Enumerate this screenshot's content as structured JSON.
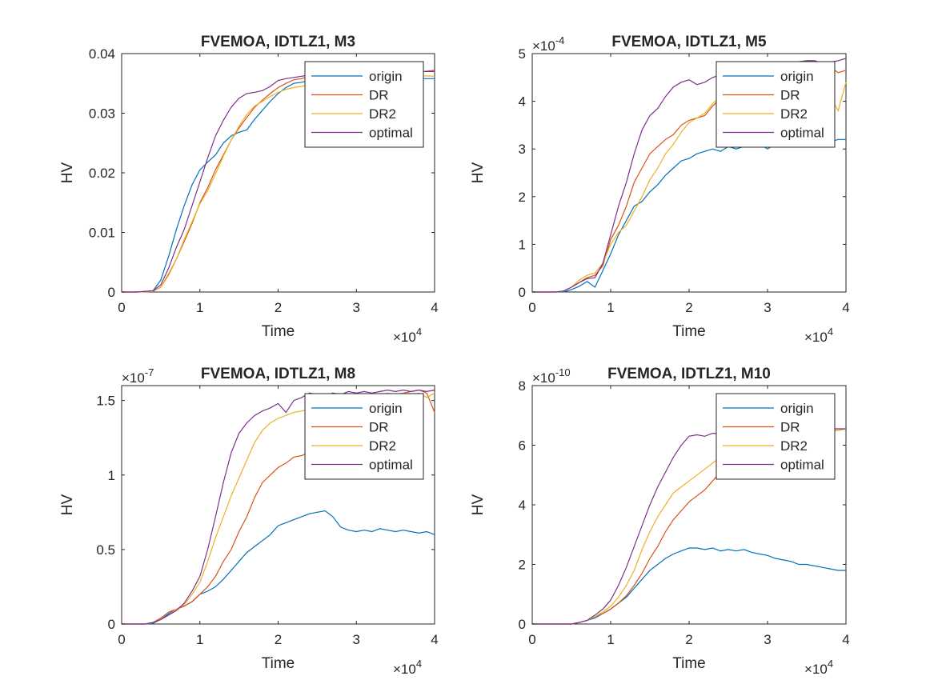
{
  "series_colors": {
    "origin": "#0072BD",
    "DR": "#D95319",
    "DR2": "#EDB120",
    "optimal": "#7E2F8E"
  },
  "chart_data": [
    {
      "type": "line",
      "title": "FVEMOA, IDTLZ1, M3",
      "xlabel": "Time",
      "ylabel": "HV",
      "x_exponent_label": "×10",
      "x_exponent": "4",
      "y_exponent_label": "",
      "y_exponent": "",
      "xlim": [
        0,
        40000
      ],
      "ylim": [
        0,
        0.04
      ],
      "xticks": [
        0,
        10000,
        20000,
        30000,
        40000
      ],
      "xtick_labels": [
        "0",
        "1",
        "2",
        "3",
        "4"
      ],
      "yticks": [
        0,
        0.01,
        0.02,
        0.03,
        0.04
      ],
      "ytick_labels": [
        "0",
        "0.01",
        "0.02",
        "0.03",
        "0.04"
      ],
      "legend": "top-right",
      "grid": false,
      "x": [
        0,
        2000,
        4000,
        5000,
        6000,
        7000,
        8000,
        9000,
        10000,
        11000,
        12000,
        13000,
        14000,
        15000,
        16000,
        17000,
        18000,
        19000,
        20000,
        21000,
        22000,
        23000,
        24000,
        25000,
        26000,
        27000,
        28000,
        29000,
        30000,
        32000,
        34000,
        36000,
        38000,
        40000
      ],
      "series": [
        {
          "name": "origin",
          "values": [
            0,
            0,
            0.0002,
            0.002,
            0.006,
            0.0105,
            0.0145,
            0.018,
            0.0205,
            0.0218,
            0.023,
            0.025,
            0.0262,
            0.0268,
            0.0272,
            0.029,
            0.0305,
            0.032,
            0.0333,
            0.0343,
            0.035,
            0.0352,
            0.0355,
            0.0358,
            0.036,
            0.0362,
            0.0363,
            0.0363,
            0.0364,
            0.0364,
            0.0365,
            0.0365,
            0.0358,
            0.0358
          ]
        },
        {
          "name": "DR",
          "values": [
            0,
            0,
            0.0001,
            0.0008,
            0.003,
            0.0055,
            0.0085,
            0.0115,
            0.015,
            0.0175,
            0.0205,
            0.023,
            0.0255,
            0.0275,
            0.0293,
            0.031,
            0.0322,
            0.0333,
            0.0343,
            0.035,
            0.0356,
            0.0358,
            0.0362,
            0.0363,
            0.0364,
            0.0365,
            0.0366,
            0.0366,
            0.0367,
            0.0368,
            0.0368,
            0.0368,
            0.0369,
            0.0372
          ]
        },
        {
          "name": "DR2",
          "values": [
            0,
            0,
            0.0001,
            0.0008,
            0.0028,
            0.0055,
            0.0088,
            0.0118,
            0.0148,
            0.017,
            0.0198,
            0.0228,
            0.0255,
            0.0278,
            0.0298,
            0.0312,
            0.032,
            0.0328,
            0.0335,
            0.034,
            0.0343,
            0.0345,
            0.0348,
            0.035,
            0.0352,
            0.0354,
            0.0356,
            0.0357,
            0.0358,
            0.0359,
            0.036,
            0.0362,
            0.0363,
            0.0362
          ]
        },
        {
          "name": "optimal",
          "values": [
            0,
            0,
            0.0002,
            0.0012,
            0.004,
            0.0075,
            0.0105,
            0.0145,
            0.0185,
            0.0225,
            0.0262,
            0.0288,
            0.031,
            0.0325,
            0.0333,
            0.0335,
            0.0338,
            0.0345,
            0.0355,
            0.0358,
            0.036,
            0.0362,
            0.0364,
            0.0365,
            0.0366,
            0.0367,
            0.0368,
            0.0368,
            0.0368,
            0.0368,
            0.0369,
            0.037,
            0.037,
            0.037
          ]
        }
      ]
    },
    {
      "type": "line",
      "title": "FVEMOA, IDTLZ1, M5",
      "xlabel": "Time",
      "ylabel": "HV",
      "x_exponent_label": "×10",
      "x_exponent": "4",
      "y_exponent_label": "×10",
      "y_exponent": "-4",
      "xlim": [
        0,
        40000
      ],
      "ylim": [
        0,
        5
      ],
      "xticks": [
        0,
        10000,
        20000,
        30000,
        40000
      ],
      "xtick_labels": [
        "0",
        "1",
        "2",
        "3",
        "4"
      ],
      "yticks": [
        0,
        1,
        2,
        3,
        4,
        5
      ],
      "ytick_labels": [
        "0",
        "1",
        "2",
        "3",
        "4",
        "5"
      ],
      "legend": "top-right",
      "grid": false,
      "x": [
        0,
        3000,
        4000,
        5000,
        6000,
        7000,
        8000,
        9000,
        10000,
        11000,
        12000,
        13000,
        14000,
        15000,
        16000,
        17000,
        18000,
        19000,
        20000,
        21000,
        22000,
        23000,
        24000,
        25000,
        26000,
        27000,
        28000,
        29000,
        30000,
        31000,
        32000,
        33000,
        34000,
        35000,
        36000,
        37000,
        38000,
        39000,
        40000
      ],
      "series": [
        {
          "name": "origin",
          "values": [
            0,
            0,
            0,
            0.05,
            0.12,
            0.22,
            0.1,
            0.45,
            0.8,
            1.2,
            1.5,
            1.8,
            1.9,
            2.1,
            2.25,
            2.45,
            2.6,
            2.75,
            2.8,
            2.9,
            2.95,
            3.0,
            2.95,
            3.05,
            3.0,
            3.05,
            3.05,
            3.1,
            3.0,
            3.1,
            3.05,
            3.1,
            3.1,
            3.15,
            3.1,
            3.2,
            3.15,
            3.2,
            3.2
          ]
        },
        {
          "name": "DR",
          "values": [
            0,
            0,
            0.02,
            0.1,
            0.2,
            0.3,
            0.35,
            0.55,
            1.1,
            1.4,
            1.8,
            2.3,
            2.6,
            2.9,
            3.05,
            3.2,
            3.3,
            3.5,
            3.6,
            3.65,
            3.7,
            3.9,
            4.05,
            4.15,
            4.25,
            4.35,
            4.4,
            4.5,
            4.55,
            4.6,
            4.7,
            4.75,
            4.78,
            4.8,
            4.7,
            4.75,
            4.72,
            4.6,
            4.65
          ]
        },
        {
          "name": "DR2",
          "values": [
            0,
            0,
            0.02,
            0.1,
            0.25,
            0.35,
            0.4,
            0.6,
            1.0,
            1.25,
            1.4,
            1.7,
            2.0,
            2.35,
            2.6,
            2.9,
            3.1,
            3.35,
            3.55,
            3.65,
            3.75,
            3.95,
            4.1,
            4.25,
            4.3,
            4.4,
            4.45,
            4.5,
            4.55,
            4.6,
            4.55,
            4.6,
            4.5,
            4.45,
            4.35,
            4.2,
            4.1,
            3.8,
            4.4
          ]
        },
        {
          "name": "optimal",
          "values": [
            0,
            0,
            0.02,
            0.1,
            0.2,
            0.28,
            0.3,
            0.6,
            1.2,
            1.8,
            2.3,
            2.9,
            3.4,
            3.7,
            3.85,
            4.1,
            4.3,
            4.4,
            4.45,
            4.35,
            4.4,
            4.5,
            4.55,
            4.6,
            4.65,
            4.6,
            4.7,
            4.72,
            4.75,
            4.78,
            4.8,
            4.82,
            4.83,
            4.85,
            4.85,
            4.8,
            4.82,
            4.85,
            4.9
          ]
        }
      ]
    },
    {
      "type": "line",
      "title": "FVEMOA, IDTLZ1, M8",
      "xlabel": "Time",
      "ylabel": "HV",
      "x_exponent_label": "×10",
      "x_exponent": "4",
      "y_exponent_label": "×10",
      "y_exponent": "-7",
      "xlim": [
        0,
        40000
      ],
      "ylim": [
        0,
        1.6
      ],
      "xticks": [
        0,
        10000,
        20000,
        30000,
        40000
      ],
      "xtick_labels": [
        "0",
        "1",
        "2",
        "3",
        "4"
      ],
      "yticks": [
        0,
        0.5,
        1,
        1.5
      ],
      "ytick_labels": [
        "0",
        "0.5",
        "1",
        "1.5"
      ],
      "legend": "top-right",
      "grid": false,
      "x": [
        0,
        3000,
        4000,
        5000,
        6000,
        7000,
        8000,
        9000,
        10000,
        11000,
        12000,
        13000,
        14000,
        15000,
        16000,
        17000,
        18000,
        19000,
        20000,
        21000,
        22000,
        23000,
        24000,
        25000,
        26000,
        27000,
        28000,
        29000,
        30000,
        31000,
        32000,
        33000,
        34000,
        35000,
        36000,
        37000,
        38000,
        39000,
        40000
      ],
      "series": [
        {
          "name": "origin",
          "values": [
            0,
            0,
            0.005,
            0.03,
            0.07,
            0.1,
            0.12,
            0.15,
            0.2,
            0.22,
            0.25,
            0.3,
            0.36,
            0.42,
            0.48,
            0.52,
            0.56,
            0.6,
            0.66,
            0.68,
            0.7,
            0.72,
            0.74,
            0.75,
            0.76,
            0.72,
            0.65,
            0.63,
            0.62,
            0.63,
            0.62,
            0.64,
            0.63,
            0.62,
            0.63,
            0.62,
            0.61,
            0.62,
            0.6
          ]
        },
        {
          "name": "DR",
          "values": [
            0,
            0,
            0.01,
            0.04,
            0.08,
            0.1,
            0.12,
            0.15,
            0.2,
            0.25,
            0.32,
            0.42,
            0.5,
            0.62,
            0.72,
            0.85,
            0.95,
            1.0,
            1.05,
            1.08,
            1.12,
            1.13,
            1.15,
            1.2,
            1.3,
            1.38,
            1.42,
            1.45,
            1.48,
            1.5,
            1.5,
            1.52,
            1.53,
            1.54,
            1.55,
            1.56,
            1.57,
            1.55,
            1.42
          ]
        },
        {
          "name": "DR2",
          "values": [
            0,
            0,
            0.01,
            0.03,
            0.06,
            0.1,
            0.13,
            0.2,
            0.28,
            0.42,
            0.58,
            0.72,
            0.86,
            0.98,
            1.1,
            1.22,
            1.3,
            1.35,
            1.38,
            1.4,
            1.42,
            1.43,
            1.44,
            1.45,
            1.46,
            1.47,
            1.48,
            1.5,
            1.52,
            1.53,
            1.54,
            1.54,
            1.55,
            1.54,
            1.55,
            1.53,
            1.55,
            1.52,
            1.55
          ]
        },
        {
          "name": "optimal",
          "values": [
            0,
            0,
            0.01,
            0.03,
            0.06,
            0.09,
            0.14,
            0.22,
            0.32,
            0.5,
            0.72,
            0.95,
            1.15,
            1.28,
            1.35,
            1.4,
            1.43,
            1.45,
            1.48,
            1.42,
            1.5,
            1.52,
            1.55,
            1.54,
            1.53,
            1.55,
            1.54,
            1.56,
            1.55,
            1.56,
            1.55,
            1.56,
            1.57,
            1.56,
            1.57,
            1.56,
            1.57,
            1.56,
            1.57
          ]
        }
      ]
    },
    {
      "type": "line",
      "title": "FVEMOA, IDTLZ1, M10",
      "xlabel": "Time",
      "ylabel": "HV",
      "x_exponent_label": "×10",
      "x_exponent": "4",
      "y_exponent_label": "×10",
      "y_exponent": "-10",
      "xlim": [
        0,
        40000
      ],
      "ylim": [
        0,
        8
      ],
      "xticks": [
        0,
        10000,
        20000,
        30000,
        40000
      ],
      "xtick_labels": [
        "0",
        "1",
        "2",
        "3",
        "4"
      ],
      "yticks": [
        0,
        2,
        4,
        6,
        8
      ],
      "ytick_labels": [
        "0",
        "2",
        "4",
        "6",
        "8"
      ],
      "legend": "top-right",
      "grid": false,
      "x": [
        0,
        3000,
        5000,
        6000,
        7000,
        8000,
        9000,
        10000,
        11000,
        12000,
        13000,
        14000,
        15000,
        16000,
        17000,
        18000,
        19000,
        20000,
        21000,
        22000,
        23000,
        24000,
        25000,
        26000,
        27000,
        28000,
        29000,
        30000,
        31000,
        32000,
        33000,
        34000,
        35000,
        36000,
        37000,
        38000,
        39000,
        40000
      ],
      "series": [
        {
          "name": "origin",
          "values": [
            0,
            0,
            0,
            0.05,
            0.12,
            0.2,
            0.35,
            0.5,
            0.7,
            0.9,
            1.2,
            1.5,
            1.8,
            2.0,
            2.2,
            2.35,
            2.45,
            2.55,
            2.55,
            2.5,
            2.55,
            2.45,
            2.5,
            2.45,
            2.5,
            2.4,
            2.35,
            2.3,
            2.2,
            2.15,
            2.1,
            2.0,
            2.0,
            1.95,
            1.9,
            1.85,
            1.8,
            1.8
          ]
        },
        {
          "name": "DR",
          "values": [
            0,
            0,
            0,
            0.05,
            0.12,
            0.25,
            0.35,
            0.5,
            0.7,
            0.95,
            1.3,
            1.7,
            2.2,
            2.6,
            3.1,
            3.5,
            3.8,
            4.1,
            4.3,
            4.5,
            4.8,
            5.1,
            5.4,
            5.6,
            5.8,
            6.0,
            6.1,
            6.2,
            6.25,
            6.3,
            6.35,
            6.38,
            6.4,
            6.45,
            6.45,
            6.48,
            6.5,
            6.55
          ]
        },
        {
          "name": "DR2",
          "values": [
            0,
            0,
            0,
            0.05,
            0.12,
            0.25,
            0.4,
            0.6,
            0.9,
            1.3,
            1.8,
            2.5,
            3.1,
            3.6,
            4.0,
            4.4,
            4.6,
            4.8,
            5.0,
            5.2,
            5.4,
            5.6,
            5.75,
            5.9,
            6.0,
            6.1,
            6.2,
            6.25,
            6.3,
            6.35,
            6.4,
            6.4,
            6.45,
            6.45,
            6.5,
            6.5,
            6.5,
            6.55
          ]
        },
        {
          "name": "optimal",
          "values": [
            0,
            0,
            0,
            0.05,
            0.12,
            0.3,
            0.5,
            0.8,
            1.3,
            1.9,
            2.6,
            3.3,
            4.0,
            4.6,
            5.1,
            5.6,
            6.0,
            6.3,
            6.35,
            6.3,
            6.4,
            6.38,
            6.4,
            6.42,
            6.45,
            6.45,
            6.48,
            6.5,
            6.5,
            6.5,
            6.5,
            6.52,
            6.52,
            6.53,
            6.53,
            6.55,
            6.55,
            6.55
          ]
        }
      ]
    }
  ]
}
